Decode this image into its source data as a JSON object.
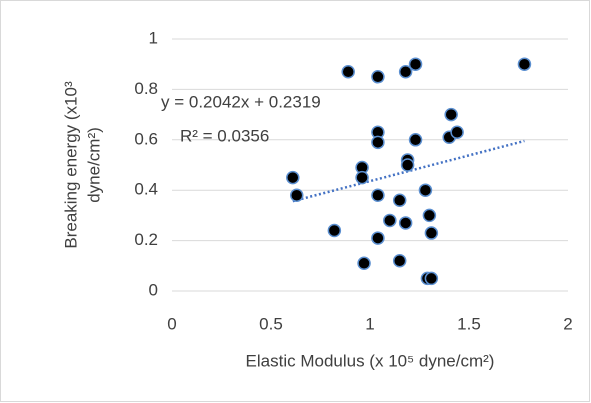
{
  "chart_data": {
    "type": "scatter",
    "ylabel": [
      "Breaking energy (x10³",
      "dyne/cm²)"
    ],
    "xlabel": "Elastic Modulus (x 10⁵ dyne/cm²)",
    "x": [
      0.61,
      0.63,
      0.82,
      0.89,
      1.04,
      0.96,
      0.96,
      0.97,
      1.04,
      1.04,
      1.04,
      1.04,
      1.1,
      1.15,
      1.15,
      1.18,
      1.18,
      1.19,
      1.19,
      1.23,
      1.23,
      1.28,
      1.3,
      1.31,
      1.29,
      1.31,
      1.4,
      1.41,
      1.44,
      1.78
    ],
    "values": [
      0.45,
      0.38,
      0.24,
      0.87,
      0.85,
      0.49,
      0.45,
      0.11,
      0.63,
      0.59,
      0.38,
      0.21,
      0.28,
      0.36,
      0.12,
      0.27,
      0.87,
      0.52,
      0.5,
      0.9,
      0.6,
      0.4,
      0.3,
      0.23,
      0.05,
      0.05,
      0.61,
      0.7,
      0.63,
      0.9
    ],
    "color": "#000000",
    "edge_color": "#5b8fd0",
    "trendline": {
      "slope": 0.2042,
      "intercept": 0.2319,
      "color": "#4472c4",
      "label": "y = 0.2042x + 0.2319",
      "r2_label": "R² = 0.0356"
    },
    "xlim": [
      0,
      2
    ],
    "xticks": [
      0,
      0.5,
      1,
      1.5,
      2
    ],
    "ylim": [
      0,
      1
    ],
    "yticks": [
      0,
      0.2,
      0.4,
      0.6,
      0.8,
      1
    ],
    "grid": true
  }
}
